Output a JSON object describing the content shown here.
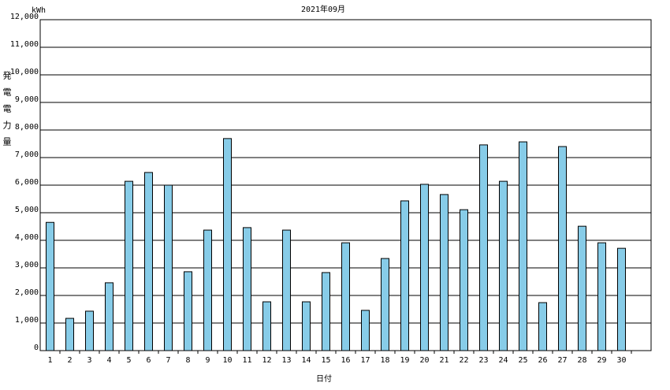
{
  "chart_data": {
    "type": "bar",
    "title": "2021年09月",
    "y_unit": "kWh",
    "y_label": "発電電力量",
    "x_label": "日付",
    "categories": [
      "1",
      "2",
      "3",
      "4",
      "5",
      "6",
      "7",
      "8",
      "9",
      "10",
      "11",
      "12",
      "13",
      "14",
      "15",
      "16",
      "17",
      "18",
      "19",
      "20",
      "21",
      "22",
      "23",
      "24",
      "25",
      "26",
      "27",
      "28",
      "29",
      "30"
    ],
    "values": [
      4650,
      1170,
      1430,
      2460,
      6140,
      6460,
      6000,
      2860,
      4370,
      7690,
      4460,
      1770,
      4370,
      1770,
      2830,
      3910,
      1460,
      3340,
      5430,
      6030,
      5660,
      5110,
      7460,
      6140,
      7570,
      1740,
      7400,
      4510,
      3910,
      3710
    ],
    "color": "#87cce8",
    "ylim": [
      0,
      12000
    ],
    "yticks": [
      0,
      {
        "value": 1000,
        "label": "1,000"
      },
      {
        "value": 2000,
        "label": "2,000"
      },
      {
        "value": 3000,
        "label": "3,000"
      },
      {
        "value": 4000,
        "label": "4,000"
      },
      {
        "value": 5000,
        "label": "5,000"
      },
      {
        "value": 6000,
        "label": "6,000"
      },
      {
        "value": 7000,
        "label": "7,000"
      },
      {
        "value": 8000,
        "label": "8,000"
      },
      {
        "value": 9000,
        "label": "9,000"
      },
      {
        "value": 10000,
        "label": "10,000"
      },
      {
        "value": 11000,
        "label": "11,000"
      },
      {
        "value": 12000,
        "label": "12,000"
      }
    ],
    "grid": true
  }
}
